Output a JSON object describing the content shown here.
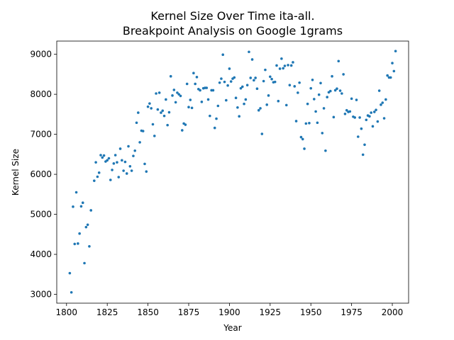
{
  "chart_data": {
    "type": "scatter",
    "title": "Kernel Size Over Time ita-all.",
    "subtitle": "Breakpoint Analysis on Google 1grams",
    "xlabel": "Year",
    "ylabel": "Kernel Size",
    "xlim": [
      1794,
      2010
    ],
    "ylim": [
      2780,
      9330
    ],
    "xticks": [
      1800,
      1825,
      1850,
      1875,
      1900,
      1925,
      1950,
      1975,
      2000
    ],
    "yticks": [
      3000,
      4000,
      5000,
      6000,
      7000,
      8000,
      9000
    ],
    "grid": false,
    "marker_color": "#1f77b4",
    "points": [
      [
        1802,
        3530
      ],
      [
        1803,
        3050
      ],
      [
        1804,
        5190
      ],
      [
        1805,
        4260
      ],
      [
        1806,
        5550
      ],
      [
        1807,
        4270
      ],
      [
        1808,
        4520
      ],
      [
        1809,
        5200
      ],
      [
        1810,
        5290
      ],
      [
        1811,
        3780
      ],
      [
        1812,
        4680
      ],
      [
        1813,
        4740
      ],
      [
        1814,
        4200
      ],
      [
        1815,
        5100
      ],
      [
        1817,
        5840
      ],
      [
        1818,
        6300
      ],
      [
        1819,
        5940
      ],
      [
        1820,
        6040
      ],
      [
        1821,
        6480
      ],
      [
        1822,
        6420
      ],
      [
        1823,
        6470
      ],
      [
        1824,
        6320
      ],
      [
        1825,
        6350
      ],
      [
        1826,
        6400
      ],
      [
        1827,
        5860
      ],
      [
        1828,
        6110
      ],
      [
        1829,
        6270
      ],
      [
        1830,
        6480
      ],
      [
        1831,
        6300
      ],
      [
        1832,
        5930
      ],
      [
        1833,
        6640
      ],
      [
        1834,
        6350
      ],
      [
        1835,
        6090
      ],
      [
        1836,
        6310
      ],
      [
        1837,
        6020
      ],
      [
        1838,
        6700
      ],
      [
        1839,
        6200
      ],
      [
        1840,
        6090
      ],
      [
        1841,
        6460
      ],
      [
        1842,
        6590
      ],
      [
        1843,
        7290
      ],
      [
        1844,
        7540
      ],
      [
        1845,
        6800
      ],
      [
        1846,
        7090
      ],
      [
        1847,
        7080
      ],
      [
        1848,
        6260
      ],
      [
        1849,
        6070
      ],
      [
        1850,
        7690
      ],
      [
        1851,
        7770
      ],
      [
        1852,
        7650
      ],
      [
        1853,
        7250
      ],
      [
        1854,
        6960
      ],
      [
        1855,
        8020
      ],
      [
        1856,
        7620
      ],
      [
        1857,
        8040
      ],
      [
        1858,
        7540
      ],
      [
        1859,
        7590
      ],
      [
        1860,
        7460
      ],
      [
        1861,
        7870
      ],
      [
        1862,
        7230
      ],
      [
        1863,
        7550
      ],
      [
        1864,
        8450
      ],
      [
        1865,
        7970
      ],
      [
        1866,
        8110
      ],
      [
        1867,
        7800
      ],
      [
        1868,
        8040
      ],
      [
        1869,
        8000
      ],
      [
        1870,
        7960
      ],
      [
        1871,
        7100
      ],
      [
        1872,
        7270
      ],
      [
        1873,
        7240
      ],
      [
        1874,
        8260
      ],
      [
        1875,
        7680
      ],
      [
        1876,
        7860
      ],
      [
        1877,
        7660
      ],
      [
        1878,
        8530
      ],
      [
        1879,
        8260
      ],
      [
        1880,
        8430
      ],
      [
        1881,
        8130
      ],
      [
        1882,
        8100
      ],
      [
        1883,
        7810
      ],
      [
        1884,
        8150
      ],
      [
        1885,
        8160
      ],
      [
        1886,
        8160
      ],
      [
        1887,
        7870
      ],
      [
        1888,
        7460
      ],
      [
        1889,
        8100
      ],
      [
        1890,
        8100
      ],
      [
        1891,
        7160
      ],
      [
        1892,
        7390
      ],
      [
        1893,
        7710
      ],
      [
        1894,
        8290
      ],
      [
        1895,
        8390
      ],
      [
        1896,
        8990
      ],
      [
        1897,
        8310
      ],
      [
        1898,
        7850
      ],
      [
        1899,
        8220
      ],
      [
        1900,
        8640
      ],
      [
        1901,
        8320
      ],
      [
        1902,
        8390
      ],
      [
        1903,
        8420
      ],
      [
        1904,
        7910
      ],
      [
        1905,
        7670
      ],
      [
        1906,
        7450
      ],
      [
        1907,
        8150
      ],
      [
        1908,
        8190
      ],
      [
        1909,
        7760
      ],
      [
        1910,
        7870
      ],
      [
        1911,
        8230
      ],
      [
        1912,
        9060
      ],
      [
        1913,
        8410
      ],
      [
        1914,
        8870
      ],
      [
        1915,
        8350
      ],
      [
        1916,
        8410
      ],
      [
        1917,
        8140
      ],
      [
        1918,
        7600
      ],
      [
        1919,
        7650
      ],
      [
        1920,
        7010
      ],
      [
        1921,
        8330
      ],
      [
        1922,
        8610
      ],
      [
        1923,
        7740
      ],
      [
        1924,
        7970
      ],
      [
        1925,
        8440
      ],
      [
        1926,
        8380
      ],
      [
        1927,
        8300
      ],
      [
        1928,
        8310
      ],
      [
        1929,
        8720
      ],
      [
        1930,
        7830
      ],
      [
        1931,
        8640
      ],
      [
        1932,
        8890
      ],
      [
        1933,
        8650
      ],
      [
        1934,
        8710
      ],
      [
        1935,
        7730
      ],
      [
        1936,
        8730
      ],
      [
        1937,
        8230
      ],
      [
        1938,
        8720
      ],
      [
        1939,
        8800
      ],
      [
        1940,
        8200
      ],
      [
        1941,
        7330
      ],
      [
        1942,
        8040
      ],
      [
        1943,
        8290
      ],
      [
        1944,
        6930
      ],
      [
        1945,
        6880
      ],
      [
        1946,
        6640
      ],
      [
        1947,
        7270
      ],
      [
        1948,
        7760
      ],
      [
        1949,
        7280
      ],
      [
        1950,
        8150
      ],
      [
        1951,
        8360
      ],
      [
        1952,
        7880
      ],
      [
        1953,
        7570
      ],
      [
        1954,
        7290
      ],
      [
        1955,
        7990
      ],
      [
        1956,
        8280
      ],
      [
        1957,
        7030
      ],
      [
        1958,
        7650
      ],
      [
        1959,
        6590
      ],
      [
        1960,
        7930
      ],
      [
        1961,
        8050
      ],
      [
        1962,
        8080
      ],
      [
        1963,
        8450
      ],
      [
        1964,
        7430
      ],
      [
        1965,
        8100
      ],
      [
        1966,
        8140
      ],
      [
        1967,
        8830
      ],
      [
        1968,
        8090
      ],
      [
        1969,
        8020
      ],
      [
        1970,
        8500
      ],
      [
        1971,
        7510
      ],
      [
        1972,
        7600
      ],
      [
        1973,
        7560
      ],
      [
        1974,
        7570
      ],
      [
        1975,
        7890
      ],
      [
        1976,
        7440
      ],
      [
        1977,
        7420
      ],
      [
        1978,
        7860
      ],
      [
        1979,
        6940
      ],
      [
        1980,
        7420
      ],
      [
        1981,
        7140
      ],
      [
        1982,
        6490
      ],
      [
        1983,
        6740
      ],
      [
        1984,
        7360
      ],
      [
        1985,
        7470
      ],
      [
        1986,
        7450
      ],
      [
        1987,
        7540
      ],
      [
        1988,
        7200
      ],
      [
        1989,
        7560
      ],
      [
        1990,
        7610
      ],
      [
        1991,
        7320
      ],
      [
        1992,
        8090
      ],
      [
        1993,
        7740
      ],
      [
        1994,
        7790
      ],
      [
        1995,
        7400
      ],
      [
        1996,
        7870
      ],
      [
        1997,
        8470
      ],
      [
        1998,
        8420
      ],
      [
        1999,
        8420
      ],
      [
        2000,
        8780
      ],
      [
        2001,
        8580
      ],
      [
        2002,
        9080
      ]
    ]
  }
}
